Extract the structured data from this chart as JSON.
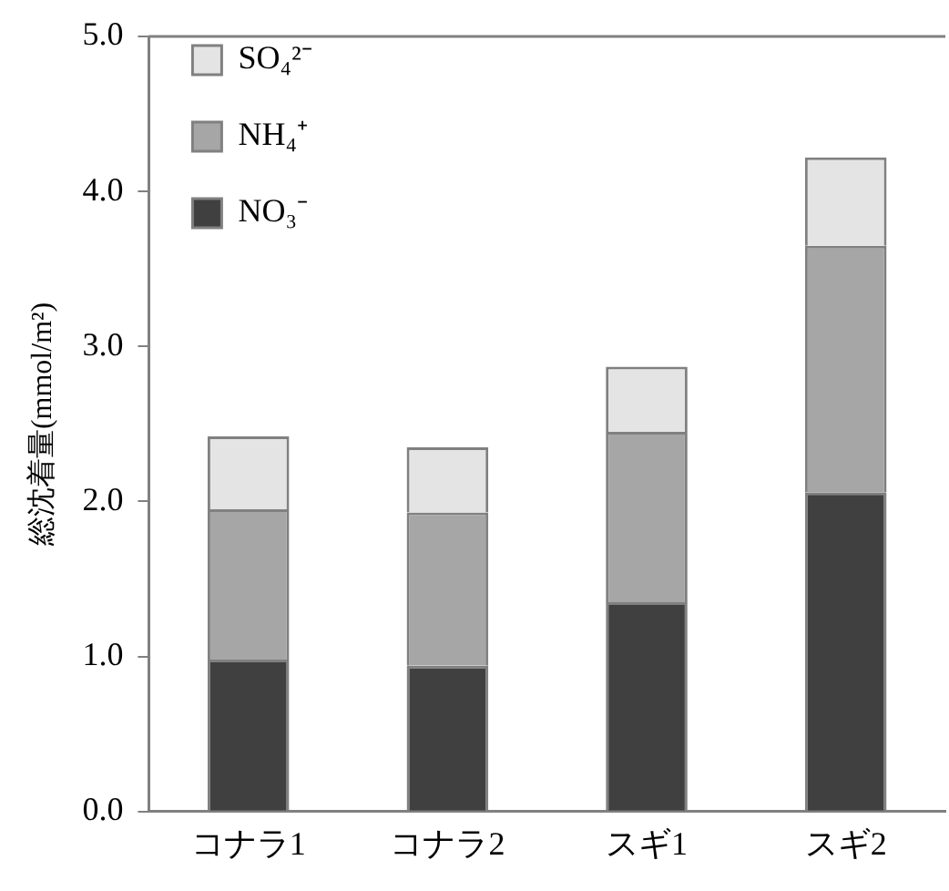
{
  "chart_data": {
    "type": "bar",
    "stacked": true,
    "ylabel": "総沈着量(mmol/m²)",
    "categories": [
      "コナラ1",
      "コナラ2",
      "スギ1",
      "スギ2"
    ],
    "series": [
      {
        "name": "NO₃⁻",
        "color": "#404040",
        "values": [
          0.98,
          0.94,
          1.35,
          2.06
        ]
      },
      {
        "name": "NH₄⁺",
        "color": "#a6a6a6",
        "values": [
          0.97,
          0.99,
          1.1,
          1.59
        ]
      },
      {
        "name": "SO₄²⁻",
        "color": "#e4e4e4",
        "values": [
          0.47,
          0.42,
          0.42,
          0.57
        ]
      }
    ],
    "ylim": [
      0,
      5
    ],
    "yticks": [
      {
        "value": 0,
        "label": "0.0"
      },
      {
        "value": 1,
        "label": "1.0"
      },
      {
        "value": 2,
        "label": "2.0"
      },
      {
        "value": 3,
        "label": "3.0"
      },
      {
        "value": 4,
        "label": "4.0"
      },
      {
        "value": 5,
        "label": "5.0"
      }
    ],
    "grid": false,
    "legend": "top left"
  }
}
